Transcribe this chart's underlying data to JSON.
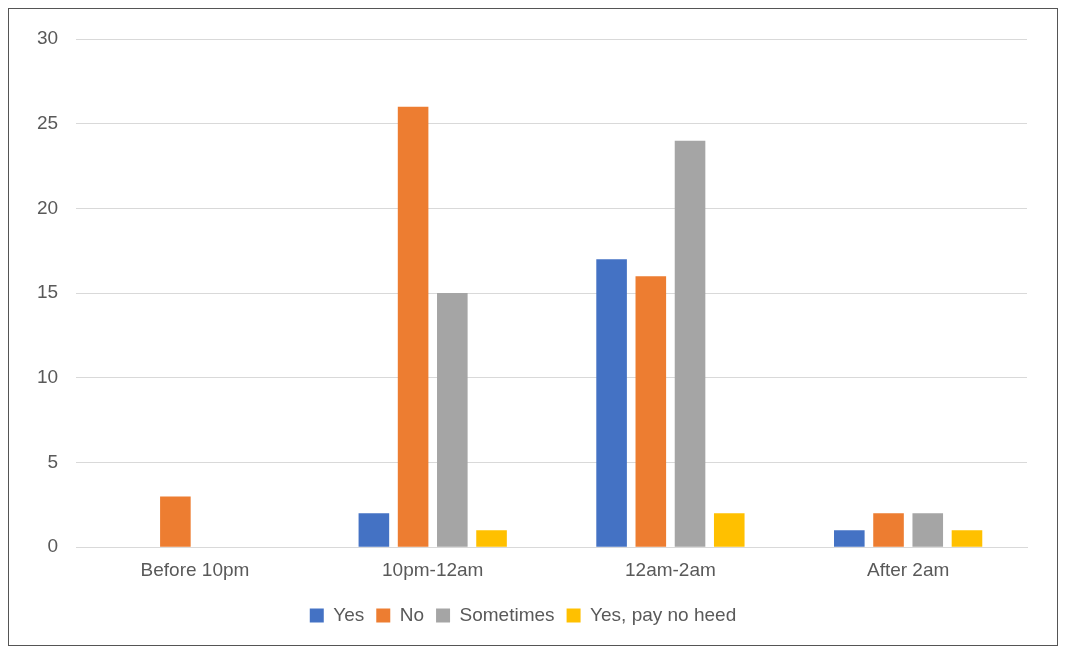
{
  "chart_data": {
    "type": "bar",
    "categories": [
      "Before 10pm",
      "10pm-12am",
      "12am-2am",
      "After 2am"
    ],
    "series": [
      {
        "name": "Yes",
        "color": "#4472c4",
        "values": [
          0,
          2,
          17,
          1
        ]
      },
      {
        "name": "No",
        "color": "#ed7d31",
        "values": [
          3,
          26,
          16,
          2
        ]
      },
      {
        "name": "Sometimes",
        "color": "#a5a5a5",
        "values": [
          0,
          15,
          24,
          2
        ]
      },
      {
        "name": "Yes, pay no heed",
        "color": "#ffc000",
        "values": [
          0,
          1,
          2,
          1
        ]
      }
    ],
    "ylim": [
      0,
      30
    ],
    "yticks": [
      0,
      5,
      10,
      15,
      20,
      25,
      30
    ],
    "grid": "y",
    "legend": "bottom"
  }
}
